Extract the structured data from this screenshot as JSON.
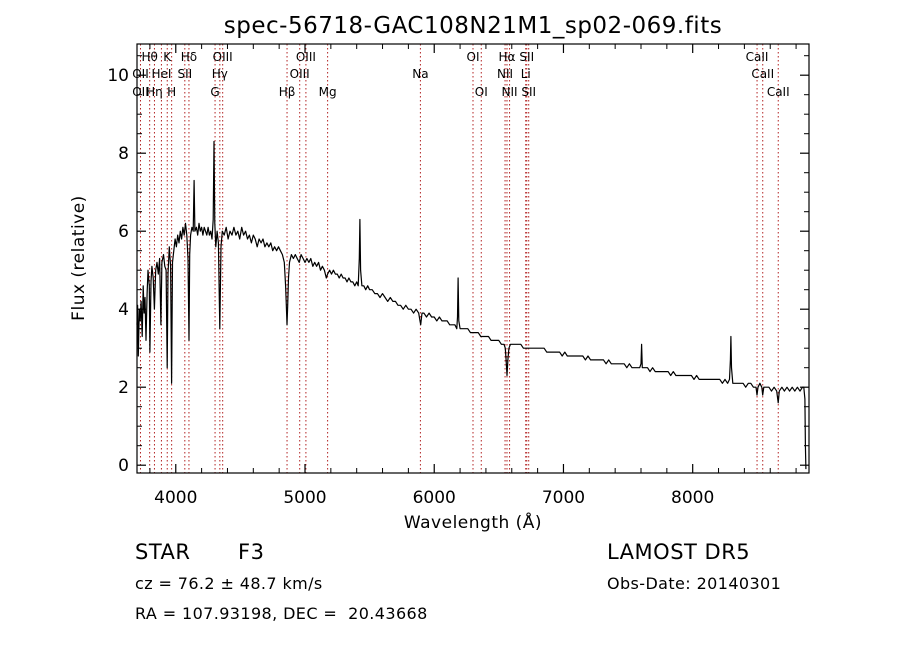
{
  "chart_data": {
    "type": "line",
    "title": "spec-56718-GAC108N21M1_sp02-069.fits",
    "xlabel": "Wavelength (Å)",
    "ylabel": "Flux (relative)",
    "xlim": [
      3700,
      8900
    ],
    "ylim": [
      -0.2,
      10.8
    ],
    "xticks": [
      4000,
      5000,
      6000,
      7000,
      8000
    ],
    "yticks": [
      0,
      2,
      4,
      6,
      8,
      10
    ],
    "grid": false,
    "legend": "none",
    "line_color": "#000000",
    "marker_color": "#b22222",
    "spectral_lines": [
      {
        "label": "OII",
        "x": 3727,
        "row": 2
      },
      {
        "label": "OII",
        "x": 3727,
        "row": 1
      },
      {
        "label": "Hθ",
        "x": 3798,
        "row": 0
      },
      {
        "label": "Hη",
        "x": 3835,
        "row": 2
      },
      {
        "label": "HeI",
        "x": 3889,
        "row": 1
      },
      {
        "label": "K",
        "x": 3934,
        "row": 0
      },
      {
        "label": "H",
        "x": 3968,
        "row": 2
      },
      {
        "label": "SII",
        "x": 4070,
        "row": 1
      },
      {
        "label": "Hδ",
        "x": 4102,
        "row": 0
      },
      {
        "label": "G",
        "x": 4304,
        "row": 2
      },
      {
        "label": "Hγ",
        "x": 4341,
        "row": 1
      },
      {
        "label": "OIII",
        "x": 4363,
        "row": 0
      },
      {
        "label": "Hβ",
        "x": 4861,
        "row": 2
      },
      {
        "label": "OIII",
        "x": 4959,
        "row": 1
      },
      {
        "label": "OIII",
        "x": 5007,
        "row": 0
      },
      {
        "label": "Mg",
        "x": 5175,
        "row": 2
      },
      {
        "label": "Na",
        "x": 5893,
        "row": 1
      },
      {
        "label": "OI",
        "x": 6300,
        "row": 0
      },
      {
        "label": "OI",
        "x": 6364,
        "row": 2
      },
      {
        "label": "NII",
        "x": 6548,
        "row": 1
      },
      {
        "label": "Hα",
        "x": 6563,
        "row": 0
      },
      {
        "label": "NII",
        "x": 6583,
        "row": 2
      },
      {
        "label": "SII",
        "x": 6716,
        "row": 0
      },
      {
        "label": "Li",
        "x": 6708,
        "row": 1
      },
      {
        "label": "SII",
        "x": 6731,
        "row": 2
      },
      {
        "label": "CaII",
        "x": 8498,
        "row": 0
      },
      {
        "label": "CaII",
        "x": 8542,
        "row": 1
      },
      {
        "label": "CaII",
        "x": 8662,
        "row": 2
      }
    ],
    "spectrum": [
      [
        3700,
        3.6
      ],
      [
        3705,
        4.1
      ],
      [
        3710,
        2.8
      ],
      [
        3718,
        4.0
      ],
      [
        3725,
        3.7
      ],
      [
        3732,
        4.2
      ],
      [
        3740,
        3.3
      ],
      [
        3748,
        4.6
      ],
      [
        3755,
        3.9
      ],
      [
        3762,
        4.3
      ],
      [
        3770,
        3.2
      ],
      [
        3778,
        4.4
      ],
      [
        3785,
        5.0
      ],
      [
        3795,
        4.6
      ],
      [
        3800,
        2.9
      ],
      [
        3808,
        4.7
      ],
      [
        3815,
        5.1
      ],
      [
        3825,
        4.8
      ],
      [
        3835,
        4.0
      ],
      [
        3845,
        5.0
      ],
      [
        3855,
        5.2
      ],
      [
        3865,
        4.9
      ],
      [
        3875,
        5.3
      ],
      [
        3885,
        3.6
      ],
      [
        3893,
        5.2
      ],
      [
        3905,
        5.4
      ],
      [
        3915,
        5.1
      ],
      [
        3925,
        5.0
      ],
      [
        3934,
        2.5
      ],
      [
        3940,
        4.9
      ],
      [
        3950,
        5.6
      ],
      [
        3960,
        5.1
      ],
      [
        3968,
        2.1
      ],
      [
        3975,
        5.2
      ],
      [
        3985,
        5.5
      ],
      [
        3995,
        5.8
      ],
      [
        4005,
        5.6
      ],
      [
        4015,
        5.9
      ],
      [
        4025,
        5.7
      ],
      [
        4035,
        6.0
      ],
      [
        4045,
        5.8
      ],
      [
        4055,
        6.1
      ],
      [
        4065,
        5.9
      ],
      [
        4075,
        6.2
      ],
      [
        4085,
        5.9
      ],
      [
        4095,
        5.3
      ],
      [
        4102,
        3.2
      ],
      [
        4108,
        5.4
      ],
      [
        4115,
        5.9
      ],
      [
        4125,
        6.1
      ],
      [
        4135,
        6.0
      ],
      [
        4142,
        7.3
      ],
      [
        4148,
        6.0
      ],
      [
        4160,
        6.1
      ],
      [
        4170,
        5.9
      ],
      [
        4180,
        6.2
      ],
      [
        4190,
        6.0
      ],
      [
        4200,
        6.1
      ],
      [
        4210,
        5.9
      ],
      [
        4220,
        6.1
      ],
      [
        4230,
        6.0
      ],
      [
        4240,
        5.9
      ],
      [
        4250,
        6.1
      ],
      [
        4260,
        5.9
      ],
      [
        4270,
        6.0
      ],
      [
        4280,
        5.8
      ],
      [
        4290,
        6.3
      ],
      [
        4296,
        8.3
      ],
      [
        4302,
        6.2
      ],
      [
        4310,
        5.6
      ],
      [
        4320,
        6.0
      ],
      [
        4330,
        5.7
      ],
      [
        4341,
        3.5
      ],
      [
        4350,
        5.6
      ],
      [
        4360,
        6.0
      ],
      [
        4375,
        5.9
      ],
      [
        4390,
        6.1
      ],
      [
        4405,
        5.8
      ],
      [
        4420,
        6.0
      ],
      [
        4435,
        5.9
      ],
      [
        4450,
        6.1
      ],
      [
        4465,
        5.9
      ],
      [
        4480,
        6.0
      ],
      [
        4495,
        5.8
      ],
      [
        4510,
        6.1
      ],
      [
        4525,
        5.9
      ],
      [
        4540,
        6.0
      ],
      [
        4555,
        5.8
      ],
      [
        4570,
        5.9
      ],
      [
        4585,
        5.7
      ],
      [
        4600,
        5.9
      ],
      [
        4615,
        5.8
      ],
      [
        4630,
        5.6
      ],
      [
        4645,
        5.8
      ],
      [
        4660,
        5.7
      ],
      [
        4675,
        5.8
      ],
      [
        4690,
        5.6
      ],
      [
        4705,
        5.7
      ],
      [
        4720,
        5.6
      ],
      [
        4735,
        5.7
      ],
      [
        4750,
        5.5
      ],
      [
        4765,
        5.6
      ],
      [
        4780,
        5.5
      ],
      [
        4795,
        5.6
      ],
      [
        4810,
        5.5
      ],
      [
        4825,
        5.4
      ],
      [
        4840,
        5.2
      ],
      [
        4850,
        4.6
      ],
      [
        4858,
        3.9
      ],
      [
        4861,
        3.6
      ],
      [
        4866,
        4.1
      ],
      [
        4872,
        4.8
      ],
      [
        4880,
        5.2
      ],
      [
        4895,
        5.4
      ],
      [
        4910,
        5.3
      ],
      [
        4925,
        5.4
      ],
      [
        4940,
        5.3
      ],
      [
        4955,
        5.2
      ],
      [
        4970,
        5.4
      ],
      [
        4985,
        5.3
      ],
      [
        5000,
        5.2
      ],
      [
        5015,
        5.3
      ],
      [
        5030,
        5.2
      ],
      [
        5045,
        5.3
      ],
      [
        5060,
        5.1
      ],
      [
        5075,
        5.2
      ],
      [
        5090,
        5.1
      ],
      [
        5105,
        5.2
      ],
      [
        5120,
        5.0
      ],
      [
        5135,
        5.1
      ],
      [
        5150,
        5.0
      ],
      [
        5165,
        4.8
      ],
      [
        5175,
        4.9
      ],
      [
        5190,
        5.0
      ],
      [
        5205,
        4.9
      ],
      [
        5220,
        5.0
      ],
      [
        5235,
        4.9
      ],
      [
        5250,
        4.9
      ],
      [
        5265,
        4.8
      ],
      [
        5280,
        4.9
      ],
      [
        5295,
        4.8
      ],
      [
        5310,
        4.8
      ],
      [
        5325,
        4.7
      ],
      [
        5340,
        4.8
      ],
      [
        5355,
        4.7
      ],
      [
        5370,
        4.7
      ],
      [
        5385,
        4.6
      ],
      [
        5400,
        4.7
      ],
      [
        5412,
        4.6
      ],
      [
        5420,
        5.3
      ],
      [
        5425,
        6.3
      ],
      [
        5430,
        5.0
      ],
      [
        5440,
        4.6
      ],
      [
        5455,
        4.6
      ],
      [
        5470,
        4.5
      ],
      [
        5485,
        4.6
      ],
      [
        5500,
        4.5
      ],
      [
        5520,
        4.5
      ],
      [
        5540,
        4.4
      ],
      [
        5560,
        4.4
      ],
      [
        5580,
        4.3
      ],
      [
        5600,
        4.4
      ],
      [
        5620,
        4.3
      ],
      [
        5640,
        4.2
      ],
      [
        5660,
        4.3
      ],
      [
        5680,
        4.2
      ],
      [
        5700,
        4.2
      ],
      [
        5720,
        4.1
      ],
      [
        5740,
        4.1
      ],
      [
        5760,
        4.0
      ],
      [
        5780,
        4.1
      ],
      [
        5800,
        4.0
      ],
      [
        5820,
        4.0
      ],
      [
        5840,
        3.9
      ],
      [
        5860,
        4.0
      ],
      [
        5880,
        3.9
      ],
      [
        5890,
        3.7
      ],
      [
        5895,
        3.6
      ],
      [
        5905,
        3.9
      ],
      [
        5920,
        3.9
      ],
      [
        5940,
        3.8
      ],
      [
        5960,
        3.9
      ],
      [
        5980,
        3.8
      ],
      [
        6000,
        3.8
      ],
      [
        6020,
        3.7
      ],
      [
        6040,
        3.8
      ],
      [
        6060,
        3.7
      ],
      [
        6080,
        3.7
      ],
      [
        6100,
        3.7
      ],
      [
        6120,
        3.6
      ],
      [
        6140,
        3.6
      ],
      [
        6160,
        3.6
      ],
      [
        6175,
        3.5
      ],
      [
        6180,
        3.8
      ],
      [
        6185,
        4.8
      ],
      [
        6190,
        3.7
      ],
      [
        6200,
        3.5
      ],
      [
        6220,
        3.5
      ],
      [
        6240,
        3.5
      ],
      [
        6260,
        3.5
      ],
      [
        6280,
        3.4
      ],
      [
        6300,
        3.4
      ],
      [
        6320,
        3.4
      ],
      [
        6340,
        3.4
      ],
      [
        6360,
        3.3
      ],
      [
        6380,
        3.3
      ],
      [
        6400,
        3.3
      ],
      [
        6420,
        3.3
      ],
      [
        6440,
        3.2
      ],
      [
        6460,
        3.2
      ],
      [
        6480,
        3.2
      ],
      [
        6500,
        3.2
      ],
      [
        6520,
        3.1
      ],
      [
        6540,
        3.1
      ],
      [
        6550,
        3.0
      ],
      [
        6556,
        2.7
      ],
      [
        6563,
        2.3
      ],
      [
        6570,
        2.7
      ],
      [
        6578,
        3.0
      ],
      [
        6590,
        3.1
      ],
      [
        6610,
        3.1
      ],
      [
        6630,
        3.1
      ],
      [
        6650,
        3.1
      ],
      [
        6670,
        3.1
      ],
      [
        6690,
        3.0
      ],
      [
        6710,
        3.0
      ],
      [
        6730,
        3.0
      ],
      [
        6750,
        3.0
      ],
      [
        6770,
        3.0
      ],
      [
        6790,
        3.0
      ],
      [
        6810,
        3.0
      ],
      [
        6830,
        3.0
      ],
      [
        6850,
        3.0
      ],
      [
        6870,
        2.9
      ],
      [
        6890,
        2.9
      ],
      [
        6910,
        2.9
      ],
      [
        6930,
        2.9
      ],
      [
        6950,
        2.9
      ],
      [
        6970,
        2.9
      ],
      [
        6990,
        2.8
      ],
      [
        7010,
        2.9
      ],
      [
        7030,
        2.8
      ],
      [
        7050,
        2.8
      ],
      [
        7070,
        2.8
      ],
      [
        7090,
        2.8
      ],
      [
        7110,
        2.8
      ],
      [
        7130,
        2.8
      ],
      [
        7150,
        2.8
      ],
      [
        7170,
        2.7
      ],
      [
        7190,
        2.8
      ],
      [
        7210,
        2.7
      ],
      [
        7230,
        2.7
      ],
      [
        7250,
        2.7
      ],
      [
        7270,
        2.7
      ],
      [
        7290,
        2.7
      ],
      [
        7310,
        2.7
      ],
      [
        7330,
        2.6
      ],
      [
        7350,
        2.7
      ],
      [
        7370,
        2.6
      ],
      [
        7390,
        2.6
      ],
      [
        7410,
        2.6
      ],
      [
        7430,
        2.6
      ],
      [
        7450,
        2.6
      ],
      [
        7470,
        2.6
      ],
      [
        7490,
        2.5
      ],
      [
        7510,
        2.6
      ],
      [
        7530,
        2.5
      ],
      [
        7550,
        2.5
      ],
      [
        7570,
        2.5
      ],
      [
        7590,
        2.5
      ],
      [
        7600,
        2.6
      ],
      [
        7605,
        3.1
      ],
      [
        7610,
        2.5
      ],
      [
        7630,
        2.5
      ],
      [
        7650,
        2.5
      ],
      [
        7670,
        2.4
      ],
      [
        7690,
        2.5
      ],
      [
        7710,
        2.4
      ],
      [
        7730,
        2.4
      ],
      [
        7750,
        2.4
      ],
      [
        7770,
        2.4
      ],
      [
        7790,
        2.4
      ],
      [
        7810,
        2.4
      ],
      [
        7830,
        2.3
      ],
      [
        7850,
        2.4
      ],
      [
        7870,
        2.3
      ],
      [
        7890,
        2.3
      ],
      [
        7910,
        2.3
      ],
      [
        7930,
        2.3
      ],
      [
        7950,
        2.3
      ],
      [
        7970,
        2.3
      ],
      [
        7990,
        2.3
      ],
      [
        8010,
        2.2
      ],
      [
        8030,
        2.3
      ],
      [
        8050,
        2.2
      ],
      [
        8070,
        2.2
      ],
      [
        8090,
        2.2
      ],
      [
        8110,
        2.2
      ],
      [
        8130,
        2.2
      ],
      [
        8150,
        2.2
      ],
      [
        8170,
        2.2
      ],
      [
        8190,
        2.2
      ],
      [
        8210,
        2.2
      ],
      [
        8230,
        2.1
      ],
      [
        8250,
        2.2
      ],
      [
        8270,
        2.1
      ],
      [
        8285,
        2.2
      ],
      [
        8292,
        2.7
      ],
      [
        8296,
        3.3
      ],
      [
        8300,
        2.5
      ],
      [
        8310,
        2.1
      ],
      [
        8330,
        2.1
      ],
      [
        8350,
        2.1
      ],
      [
        8370,
        2.1
      ],
      [
        8390,
        2.1
      ],
      [
        8410,
        2.0
      ],
      [
        8430,
        2.1
      ],
      [
        8450,
        2.1
      ],
      [
        8470,
        2.0
      ],
      [
        8490,
        2.0
      ],
      [
        8498,
        1.8
      ],
      [
        8505,
        2.0
      ],
      [
        8520,
        2.1
      ],
      [
        8535,
        2.0
      ],
      [
        8542,
        1.8
      ],
      [
        8550,
        2.0
      ],
      [
        8570,
        2.0
      ],
      [
        8590,
        2.0
      ],
      [
        8610,
        1.9
      ],
      [
        8630,
        2.0
      ],
      [
        8650,
        1.9
      ],
      [
        8662,
        1.6
      ],
      [
        8670,
        1.9
      ],
      [
        8690,
        2.0
      ],
      [
        8710,
        1.9
      ],
      [
        8730,
        2.0
      ],
      [
        8750,
        1.9
      ],
      [
        8770,
        2.0
      ],
      [
        8790,
        1.9
      ],
      [
        8810,
        2.0
      ],
      [
        8830,
        1.9
      ],
      [
        8850,
        2.0
      ],
      [
        8860,
        2.0
      ],
      [
        8868,
        1.7
      ],
      [
        8872,
        0.5
      ],
      [
        8876,
        -0.1
      ]
    ]
  },
  "info": {
    "object_class": "STAR",
    "subclass": "F3",
    "survey": "LAMOST DR5",
    "redshift": "cz = 76.2 ± 48.7 km/s",
    "obs_date": "Obs-Date: 20140301",
    "coords": "RA = 107.93198, DEC =  20.43668"
  }
}
